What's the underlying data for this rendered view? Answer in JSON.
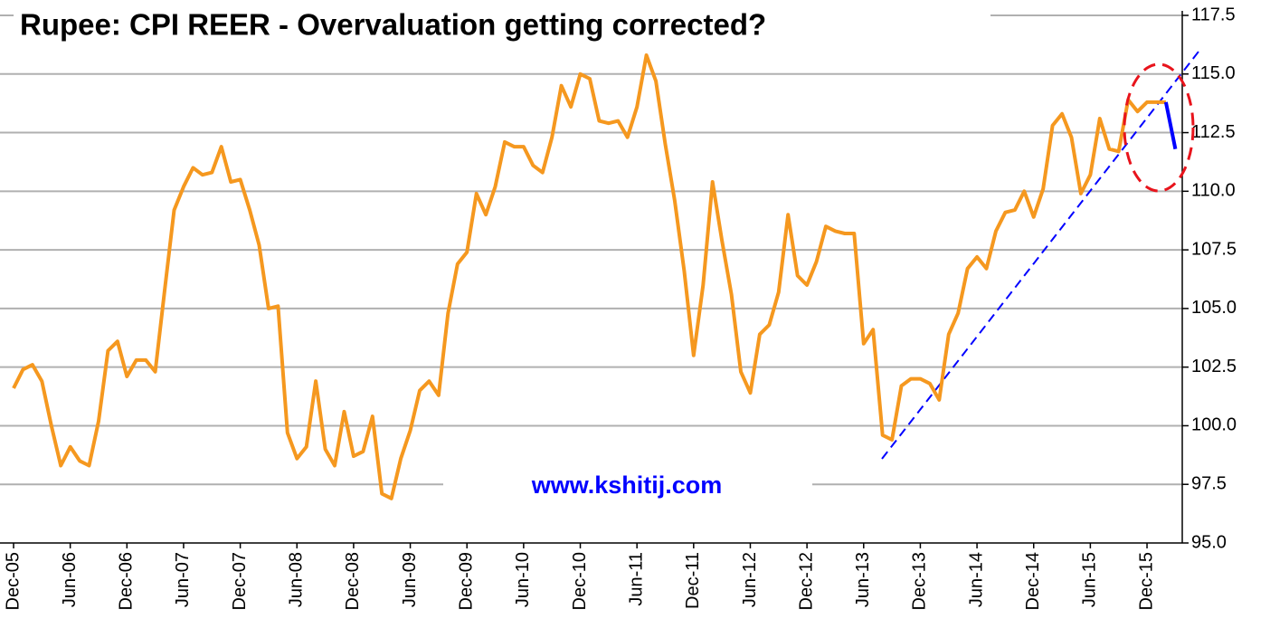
{
  "chart_data": {
    "type": "line",
    "title": "Rupee: CPI REER - Overvaluation getting corrected?",
    "annotation": "www.kshitij.com",
    "categories": [
      "Dec-05",
      null,
      null,
      null,
      null,
      null,
      "Jun-06",
      null,
      null,
      null,
      null,
      null,
      "Dec-06",
      null,
      null,
      null,
      null,
      null,
      "Jun-07",
      null,
      null,
      null,
      null,
      null,
      "Dec-07",
      null,
      null,
      null,
      null,
      null,
      "Jun-08",
      null,
      null,
      null,
      null,
      null,
      "Dec-08",
      null,
      null,
      null,
      null,
      null,
      "Jun-09",
      null,
      null,
      null,
      null,
      null,
      "Dec-09",
      null,
      null,
      null,
      null,
      null,
      "Jun-10",
      null,
      null,
      null,
      null,
      null,
      "Dec-10",
      null,
      null,
      null,
      null,
      null,
      "Jun-11",
      null,
      null,
      null,
      null,
      null,
      "Dec-11",
      null,
      null,
      null,
      null,
      null,
      "Jun-12",
      null,
      null,
      null,
      null,
      null,
      "Dec-12",
      null,
      null,
      null,
      null,
      null,
      "Jun-13",
      null,
      null,
      null,
      null,
      null,
      "Dec-13",
      null,
      null,
      null,
      null,
      null,
      "Jun-14",
      null,
      null,
      null,
      null,
      null,
      "Dec-14",
      null,
      null,
      null,
      null,
      null,
      "Jun-15",
      null,
      null,
      null,
      null,
      null,
      "Dec-15",
      null,
      null,
      null
    ],
    "series": [
      {
        "color": "#f5981f",
        "values": [
          101.6,
          102.4,
          102.6,
          101.9,
          100.0,
          98.3,
          99.1,
          98.5,
          98.3,
          100.2,
          103.2,
          103.6,
          102.1,
          102.8,
          102.8,
          102.3,
          105.8,
          109.2,
          110.2,
          111.0,
          110.7,
          110.8,
          111.9,
          110.4,
          110.5,
          109.2,
          107.7,
          105.0,
          105.1,
          99.7,
          98.6,
          99.1,
          101.9,
          99.0,
          98.3,
          100.6,
          98.7,
          98.9,
          100.4,
          97.1,
          96.9,
          98.6,
          99.8,
          101.5,
          101.9,
          101.3,
          104.8,
          106.9,
          107.4,
          109.9,
          109.0,
          110.2,
          112.1,
          111.9,
          111.9,
          111.1,
          110.8,
          112.3,
          114.5,
          113.6,
          115.0,
          114.8,
          113.0,
          112.9,
          113.0,
          112.3,
          113.6,
          115.8,
          114.7,
          112.0,
          109.6,
          106.6,
          103.0,
          106.0,
          110.4,
          107.9,
          105.6,
          102.3,
          101.4,
          103.9,
          104.3,
          105.7,
          109.0,
          106.4,
          106.0,
          107.0,
          108.5,
          108.3,
          108.2,
          108.2,
          103.5,
          104.1,
          99.6,
          99.4,
          101.7,
          102.0,
          102.0,
          101.8,
          101.1,
          103.9,
          104.8,
          106.7,
          107.2,
          106.7,
          108.3,
          109.1,
          109.2,
          110.0,
          108.9,
          110.1,
          112.8,
          113.3,
          112.3,
          109.9,
          110.7,
          113.1,
          111.8,
          111.7,
          113.9,
          113.4,
          113.8,
          113.8,
          113.8,
          null
        ]
      },
      {
        "color": "#0000ff",
        "values": [
          null,
          null,
          null,
          null,
          null,
          null,
          null,
          null,
          null,
          null,
          null,
          null,
          null,
          null,
          null,
          null,
          null,
          null,
          null,
          null,
          null,
          null,
          null,
          null,
          null,
          null,
          null,
          null,
          null,
          null,
          null,
          null,
          null,
          null,
          null,
          null,
          null,
          null,
          null,
          null,
          null,
          null,
          null,
          null,
          null,
          null,
          null,
          null,
          null,
          null,
          null,
          null,
          null,
          null,
          null,
          null,
          null,
          null,
          null,
          null,
          null,
          null,
          null,
          null,
          null,
          null,
          null,
          null,
          null,
          null,
          null,
          null,
          null,
          null,
          null,
          null,
          null,
          null,
          null,
          null,
          null,
          null,
          null,
          null,
          null,
          null,
          null,
          null,
          null,
          null,
          null,
          null,
          null,
          null,
          null,
          null,
          null,
          null,
          null,
          null,
          null,
          null,
          null,
          null,
          null,
          null,
          null,
          null,
          null,
          null,
          null,
          null,
          null,
          null,
          null,
          null,
          null,
          null,
          null,
          null,
          null,
          null,
          113.8,
          111.8
        ]
      }
    ],
    "ylim": [
      95,
      117.5
    ],
    "yticks": [
      {
        "value": 95,
        "label": "95.0"
      },
      97.5,
      {
        "value": 100,
        "label": "100.0"
      },
      102.5,
      {
        "value": 105,
        "label": "105.0"
      },
      107.5,
      {
        "value": 110,
        "label": "110.0"
      },
      112.5,
      {
        "value": 115,
        "label": "115.0"
      },
      117.5
    ],
    "grid": true
  }
}
